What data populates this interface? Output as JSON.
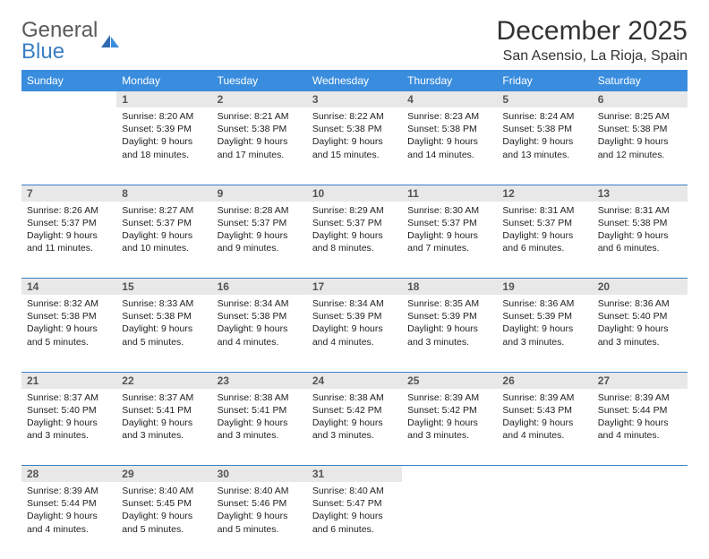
{
  "brand": {
    "part1": "General",
    "part2": "Blue"
  },
  "title": "December 2025",
  "location": "San Asensio, La Rioja, Spain",
  "colors": {
    "header_bg": "#3a8dde",
    "header_text": "#ffffff",
    "daynum_bg": "#e8e8e8",
    "daynum_text": "#555555",
    "border": "#3a7fc4",
    "body_text": "#222222",
    "logo_gray": "#5a5a5a",
    "logo_blue": "#3a7fc4"
  },
  "typography": {
    "title_fontsize": 30,
    "location_fontsize": 16,
    "weekday_fontsize": 12,
    "daynum_fontsize": 12,
    "cell_fontsize": 10.5
  },
  "weekdays": [
    "Sunday",
    "Monday",
    "Tuesday",
    "Wednesday",
    "Thursday",
    "Friday",
    "Saturday"
  ],
  "weeks": [
    [
      null,
      {
        "n": "1",
        "sr": "Sunrise: 8:20 AM",
        "ss": "Sunset: 5:39 PM",
        "dl": "Daylight: 9 hours and 18 minutes."
      },
      {
        "n": "2",
        "sr": "Sunrise: 8:21 AM",
        "ss": "Sunset: 5:38 PM",
        "dl": "Daylight: 9 hours and 17 minutes."
      },
      {
        "n": "3",
        "sr": "Sunrise: 8:22 AM",
        "ss": "Sunset: 5:38 PM",
        "dl": "Daylight: 9 hours and 15 minutes."
      },
      {
        "n": "4",
        "sr": "Sunrise: 8:23 AM",
        "ss": "Sunset: 5:38 PM",
        "dl": "Daylight: 9 hours and 14 minutes."
      },
      {
        "n": "5",
        "sr": "Sunrise: 8:24 AM",
        "ss": "Sunset: 5:38 PM",
        "dl": "Daylight: 9 hours and 13 minutes."
      },
      {
        "n": "6",
        "sr": "Sunrise: 8:25 AM",
        "ss": "Sunset: 5:38 PM",
        "dl": "Daylight: 9 hours and 12 minutes."
      }
    ],
    [
      {
        "n": "7",
        "sr": "Sunrise: 8:26 AM",
        "ss": "Sunset: 5:37 PM",
        "dl": "Daylight: 9 hours and 11 minutes."
      },
      {
        "n": "8",
        "sr": "Sunrise: 8:27 AM",
        "ss": "Sunset: 5:37 PM",
        "dl": "Daylight: 9 hours and 10 minutes."
      },
      {
        "n": "9",
        "sr": "Sunrise: 8:28 AM",
        "ss": "Sunset: 5:37 PM",
        "dl": "Daylight: 9 hours and 9 minutes."
      },
      {
        "n": "10",
        "sr": "Sunrise: 8:29 AM",
        "ss": "Sunset: 5:37 PM",
        "dl": "Daylight: 9 hours and 8 minutes."
      },
      {
        "n": "11",
        "sr": "Sunrise: 8:30 AM",
        "ss": "Sunset: 5:37 PM",
        "dl": "Daylight: 9 hours and 7 minutes."
      },
      {
        "n": "12",
        "sr": "Sunrise: 8:31 AM",
        "ss": "Sunset: 5:37 PM",
        "dl": "Daylight: 9 hours and 6 minutes."
      },
      {
        "n": "13",
        "sr": "Sunrise: 8:31 AM",
        "ss": "Sunset: 5:38 PM",
        "dl": "Daylight: 9 hours and 6 minutes."
      }
    ],
    [
      {
        "n": "14",
        "sr": "Sunrise: 8:32 AM",
        "ss": "Sunset: 5:38 PM",
        "dl": "Daylight: 9 hours and 5 minutes."
      },
      {
        "n": "15",
        "sr": "Sunrise: 8:33 AM",
        "ss": "Sunset: 5:38 PM",
        "dl": "Daylight: 9 hours and 5 minutes."
      },
      {
        "n": "16",
        "sr": "Sunrise: 8:34 AM",
        "ss": "Sunset: 5:38 PM",
        "dl": "Daylight: 9 hours and 4 minutes."
      },
      {
        "n": "17",
        "sr": "Sunrise: 8:34 AM",
        "ss": "Sunset: 5:39 PM",
        "dl": "Daylight: 9 hours and 4 minutes."
      },
      {
        "n": "18",
        "sr": "Sunrise: 8:35 AM",
        "ss": "Sunset: 5:39 PM",
        "dl": "Daylight: 9 hours and 3 minutes."
      },
      {
        "n": "19",
        "sr": "Sunrise: 8:36 AM",
        "ss": "Sunset: 5:39 PM",
        "dl": "Daylight: 9 hours and 3 minutes."
      },
      {
        "n": "20",
        "sr": "Sunrise: 8:36 AM",
        "ss": "Sunset: 5:40 PM",
        "dl": "Daylight: 9 hours and 3 minutes."
      }
    ],
    [
      {
        "n": "21",
        "sr": "Sunrise: 8:37 AM",
        "ss": "Sunset: 5:40 PM",
        "dl": "Daylight: 9 hours and 3 minutes."
      },
      {
        "n": "22",
        "sr": "Sunrise: 8:37 AM",
        "ss": "Sunset: 5:41 PM",
        "dl": "Daylight: 9 hours and 3 minutes."
      },
      {
        "n": "23",
        "sr": "Sunrise: 8:38 AM",
        "ss": "Sunset: 5:41 PM",
        "dl": "Daylight: 9 hours and 3 minutes."
      },
      {
        "n": "24",
        "sr": "Sunrise: 8:38 AM",
        "ss": "Sunset: 5:42 PM",
        "dl": "Daylight: 9 hours and 3 minutes."
      },
      {
        "n": "25",
        "sr": "Sunrise: 8:39 AM",
        "ss": "Sunset: 5:42 PM",
        "dl": "Daylight: 9 hours and 3 minutes."
      },
      {
        "n": "26",
        "sr": "Sunrise: 8:39 AM",
        "ss": "Sunset: 5:43 PM",
        "dl": "Daylight: 9 hours and 4 minutes."
      },
      {
        "n": "27",
        "sr": "Sunrise: 8:39 AM",
        "ss": "Sunset: 5:44 PM",
        "dl": "Daylight: 9 hours and 4 minutes."
      }
    ],
    [
      {
        "n": "28",
        "sr": "Sunrise: 8:39 AM",
        "ss": "Sunset: 5:44 PM",
        "dl": "Daylight: 9 hours and 4 minutes."
      },
      {
        "n": "29",
        "sr": "Sunrise: 8:40 AM",
        "ss": "Sunset: 5:45 PM",
        "dl": "Daylight: 9 hours and 5 minutes."
      },
      {
        "n": "30",
        "sr": "Sunrise: 8:40 AM",
        "ss": "Sunset: 5:46 PM",
        "dl": "Daylight: 9 hours and 5 minutes."
      },
      {
        "n": "31",
        "sr": "Sunrise: 8:40 AM",
        "ss": "Sunset: 5:47 PM",
        "dl": "Daylight: 9 hours and 6 minutes."
      },
      null,
      null,
      null
    ]
  ]
}
